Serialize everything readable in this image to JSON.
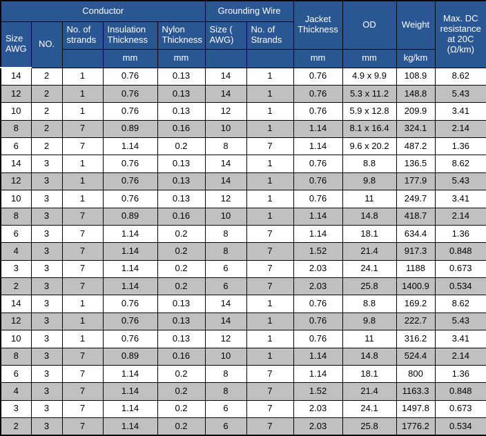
{
  "table": {
    "header": {
      "conductor": "Conductor",
      "grounding_wire": "Grounding Wire",
      "size_awg": "Size AWG",
      "no": "NO.",
      "no_of_strands": "No. of strands",
      "insulation_thickness": "Insulation Thickness",
      "nylon_thickness": "Nylon Thickness",
      "g_size": "Size ( AWG)",
      "g_strands": "No. of Strands",
      "jacket_thickness": "Jacket Thickness",
      "od": "OD",
      "weight": "Weight",
      "max_dc": "Max. DC resistance at 20C (Ω/km)"
    },
    "units": {
      "mm": "mm",
      "kg_km": "kg/km"
    },
    "columns": [
      "size-awg",
      "no",
      "strands",
      "insulation-mm",
      "nylon-mm",
      "g-size-awg",
      "g-strands",
      "jacket-mm",
      "od-mm",
      "weight-kgkm",
      "max-dc-resistance"
    ],
    "rows": [
      [
        "14",
        "2",
        "1",
        "0.76",
        "0.13",
        "14",
        "1",
        "0.76",
        "4.9 x 9.9",
        "108.9",
        "8.62"
      ],
      [
        "12",
        "2",
        "1",
        "0.76",
        "0.13",
        "14",
        "1",
        "0.76",
        "5.3 x 11.2",
        "148.8",
        "5.43"
      ],
      [
        "10",
        "2",
        "1",
        "0.76",
        "0.13",
        "12",
        "1",
        "0.76",
        "5.9 x 12.8",
        "209.9",
        "3.41"
      ],
      [
        "8",
        "2",
        "7",
        "0.89",
        "0.16",
        "10",
        "1",
        "1.14",
        "8.1 x 16.4",
        "324.1",
        "2.14"
      ],
      [
        "6",
        "2",
        "7",
        "1.14",
        "0.2",
        "8",
        "7",
        "1.14",
        "9.6 x 20.2",
        "487.2",
        "1.36"
      ],
      [
        "14",
        "3",
        "1",
        "0.76",
        "0.13",
        "14",
        "1",
        "0.76",
        "8.8",
        "136.5",
        "8.62"
      ],
      [
        "12",
        "3",
        "1",
        "0.76",
        "0.13",
        "14",
        "1",
        "0.76",
        "9.8",
        "177.9",
        "5.43"
      ],
      [
        "10",
        "3",
        "1",
        "0.76",
        "0.13",
        "12",
        "1",
        "0.76",
        "11",
        "249.7",
        "3.41"
      ],
      [
        "8",
        "3",
        "7",
        "0.89",
        "0.16",
        "10",
        "1",
        "1.14",
        "14.8",
        "418.7",
        "2.14"
      ],
      [
        "6",
        "3",
        "7",
        "1.14",
        "0.2",
        "8",
        "7",
        "1.14",
        "18.1",
        "634.4",
        "1.36"
      ],
      [
        "4",
        "3",
        "7",
        "1.14",
        "0.2",
        "8",
        "7",
        "1.52",
        "21.4",
        "917.3",
        "0.848"
      ],
      [
        "3",
        "3",
        "7",
        "1.14",
        "0.2",
        "6",
        "7",
        "2.03",
        "24.1",
        "1188",
        "0.673"
      ],
      [
        "2",
        "3",
        "7",
        "1.14",
        "0.2",
        "6",
        "7",
        "2.03",
        "25.8",
        "1400.9",
        "0.534"
      ],
      [
        "14",
        "3",
        "1",
        "0.76",
        "0.13",
        "14",
        "1",
        "0.76",
        "8.8",
        "169.2",
        "8.62"
      ],
      [
        "12",
        "3",
        "1",
        "0.76",
        "0.13",
        "14",
        "1",
        "0.76",
        "9.8",
        "222.7",
        "5.43"
      ],
      [
        "10",
        "3",
        "1",
        "0.76",
        "0.13",
        "12",
        "1",
        "0.76",
        "11",
        "316.2",
        "3.41"
      ],
      [
        "8",
        "3",
        "7",
        "0.89",
        "0.16",
        "10",
        "1",
        "1.14",
        "14.8",
        "524.4",
        "2.14"
      ],
      [
        "6",
        "3",
        "7",
        "1.14",
        "0.2",
        "8",
        "7",
        "1.14",
        "18.1",
        "800",
        "1.36"
      ],
      [
        "4",
        "3",
        "7",
        "1.14",
        "0.2",
        "8",
        "7",
        "1.52",
        "21.4",
        "1163.3",
        "0.848"
      ],
      [
        "3",
        "3",
        "7",
        "1.14",
        "0.2",
        "6",
        "7",
        "2.03",
        "24.1",
        "1497.8",
        "0.673"
      ],
      [
        "2",
        "3",
        "7",
        "1.14",
        "0.2",
        "6",
        "7",
        "2.03",
        "25.8",
        "1776.2",
        "0.534"
      ]
    ],
    "shaded_rows": [
      1,
      3,
      6,
      8,
      10,
      12,
      14,
      16,
      18,
      20
    ],
    "colors": {
      "header_bg": "#2B5694",
      "header_text": "#FFFFFF",
      "row_alt_bg": "#C0C0C0",
      "row_bg": "#FFFFFF",
      "border": "#000000"
    }
  }
}
